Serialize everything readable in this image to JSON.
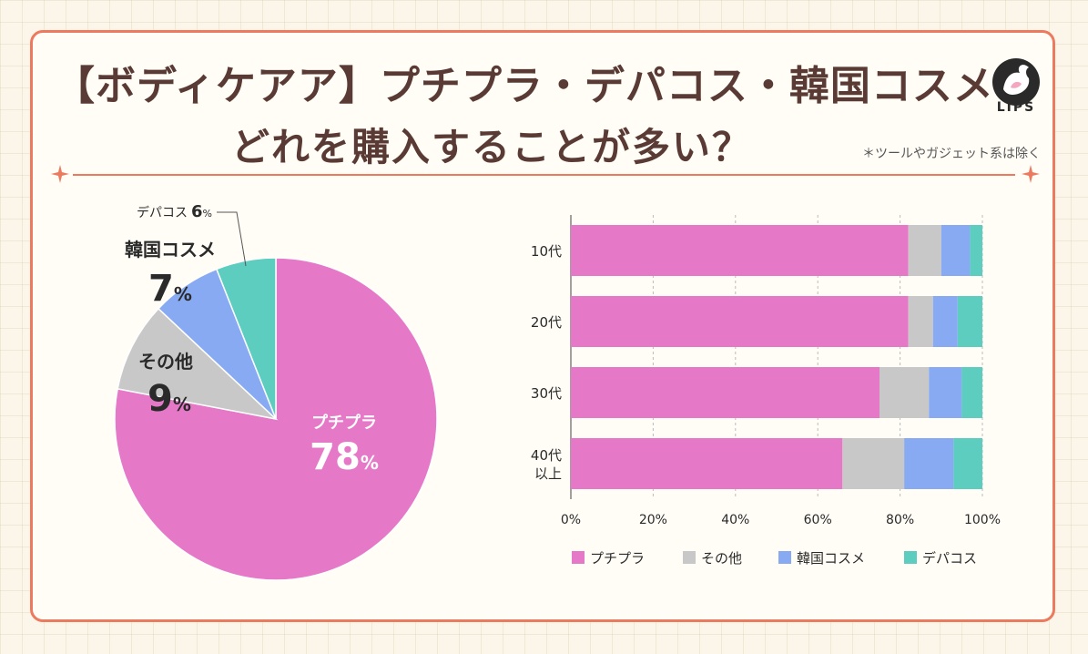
{
  "header": {
    "title_line1": "【ボディケアア】プチプラ・デパコス・韓国コスメ",
    "title_line2": "どれを購入することが多い？",
    "note": "＊ツールやガジェット系は除く",
    "brand": "LIPS"
  },
  "colors": {
    "border": "#ec7a5e",
    "title": "#5a3a34",
    "petit": "#e678c8",
    "other": "#c8c8c8",
    "korean": "#88aaf2",
    "depa": "#5dcdc0"
  },
  "chart_data": [
    {
      "type": "pie",
      "title": "",
      "labels": [
        "プチプラ",
        "その他",
        "韓国コスメ",
        "デパコス"
      ],
      "values": [
        78,
        9,
        7,
        6
      ],
      "unit": "%"
    },
    {
      "type": "bar",
      "orientation": "horizontal",
      "stacked": true,
      "categories": [
        "10代",
        "20代",
        "30代",
        "40代以上"
      ],
      "series": [
        {
          "name": "プチプラ",
          "values": [
            82,
            82,
            75,
            66
          ]
        },
        {
          "name": "その他",
          "values": [
            8,
            6,
            12,
            15
          ]
        },
        {
          "name": "韓国コスメ",
          "values": [
            7,
            6,
            8,
            12
          ]
        },
        {
          "name": "デパコス",
          "values": [
            3,
            6,
            5,
            7
          ]
        }
      ],
      "xlim": [
        0,
        100
      ],
      "xticks": [
        "0%",
        "20%",
        "40%",
        "60%",
        "80%",
        "100%"
      ],
      "legend": "bottom",
      "grid": true
    }
  ]
}
